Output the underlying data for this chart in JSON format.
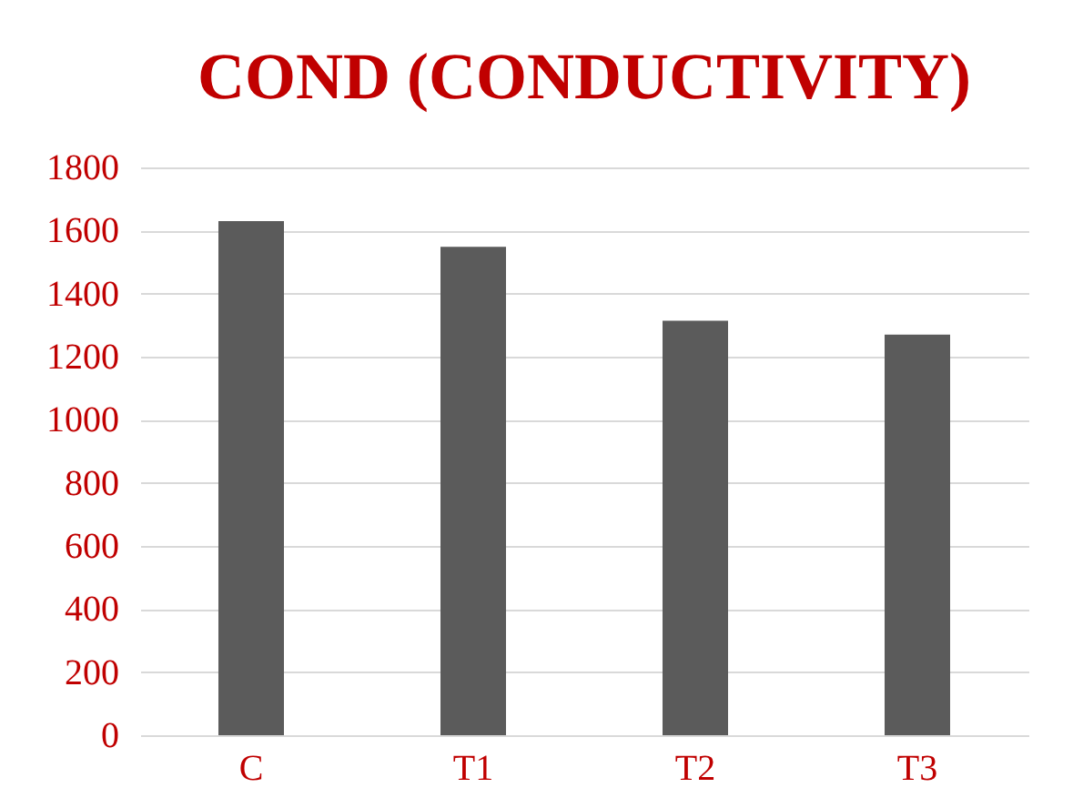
{
  "chart_data": {
    "type": "bar",
    "title": "COND (CONDUCTIVITY)",
    "categories": [
      "C",
      "T1",
      "T2",
      "T3"
    ],
    "values": [
      1630,
      1548,
      1314,
      1270
    ],
    "color": "#5b5b5b",
    "ylim": [
      0,
      1800
    ],
    "yticks": [
      0,
      200,
      400,
      600,
      800,
      1000,
      1200,
      1400,
      1600,
      1800
    ],
    "grid": "y"
  }
}
